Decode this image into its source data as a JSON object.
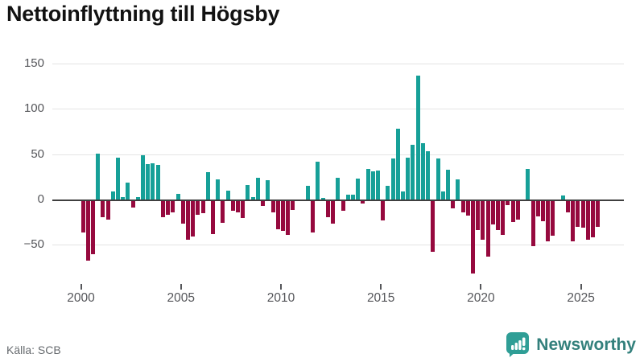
{
  "header": {
    "title": "Nettoinflyttning till Högsby"
  },
  "footer": {
    "source_label": "Källa: SCB",
    "brand": "Newsworthy"
  },
  "colors": {
    "positive_bar": "#16a098",
    "negative_bar": "#96093e",
    "zero_line": "#3f3f3f",
    "grid_line": "#e4e4e4",
    "axis_text": "#55565a",
    "title_text": "#121212",
    "source_text": "#666a6e",
    "brand_icon": "#2f9e96",
    "brand_text": "#33807c"
  },
  "chart_data": {
    "type": "bar",
    "title": "Nettoinflyttning till Högsby",
    "frequency": "quarterly",
    "start": "2000Q1",
    "end": "2025Q4",
    "xlabel": "",
    "ylabel": "",
    "y_ticks": [
      150,
      100,
      50,
      0,
      -50
    ],
    "x_tick_years": [
      2000,
      2005,
      2010,
      2015,
      2020,
      2025
    ],
    "ylim": [
      -90,
      160
    ],
    "grid": true,
    "legend": "none",
    "values_by_year": [
      {
        "year": 2000,
        "values": [
          -35,
          -66,
          -59,
          51
        ]
      },
      {
        "year": 2001,
        "values": [
          -18,
          -20,
          9,
          46
        ]
      },
      {
        "year": 2002,
        "values": [
          3,
          19,
          -7,
          3
        ]
      },
      {
        "year": 2003,
        "values": [
          49,
          39,
          40,
          38
        ]
      },
      {
        "year": 2004,
        "values": [
          -18,
          -15,
          -12,
          6
        ]
      },
      {
        "year": 2005,
        "values": [
          -25,
          -43,
          -39,
          -15
        ]
      },
      {
        "year": 2006,
        "values": [
          -13,
          30,
          -36,
          22
        ]
      },
      {
        "year": 2007,
        "values": [
          -24,
          10,
          -11,
          -12
        ]
      },
      {
        "year": 2008,
        "values": [
          -19,
          16,
          3,
          24
        ]
      },
      {
        "year": 2009,
        "values": [
          -5,
          21,
          -12,
          -31
        ]
      },
      {
        "year": 2010,
        "values": [
          -33,
          -37,
          -10,
          0
        ]
      },
      {
        "year": 2011,
        "values": [
          0,
          15,
          -35,
          42
        ]
      },
      {
        "year": 2012,
        "values": [
          2,
          -18,
          -25,
          24
        ]
      },
      {
        "year": 2013,
        "values": [
          -11,
          5,
          5,
          23
        ]
      },
      {
        "year": 2014,
        "values": [
          -3,
          34,
          31,
          32
        ]
      },
      {
        "year": 2015,
        "values": [
          -21,
          15,
          45,
          78
        ]
      },
      {
        "year": 2016,
        "values": [
          9,
          46,
          60,
          137
        ]
      },
      {
        "year": 2017,
        "values": [
          62,
          53,
          -56,
          45
        ]
      },
      {
        "year": 2018,
        "values": [
          9,
          33,
          -8,
          22
        ]
      },
      {
        "year": 2019,
        "values": [
          -12,
          -16,
          -80,
          -32
        ]
      },
      {
        "year": 2020,
        "values": [
          -43,
          -61,
          -26,
          -32
        ]
      },
      {
        "year": 2021,
        "values": [
          -37,
          -4,
          -23,
          -20
        ]
      },
      {
        "year": 2022,
        "values": [
          0,
          34,
          -50,
          -17
        ]
      },
      {
        "year": 2023,
        "values": [
          -22,
          -44,
          -38,
          0
        ]
      },
      {
        "year": 2024,
        "values": [
          4,
          -12,
          -44,
          -28
        ]
      },
      {
        "year": 2025,
        "values": [
          -29,
          -43,
          -40,
          -28
        ]
      }
    ]
  }
}
